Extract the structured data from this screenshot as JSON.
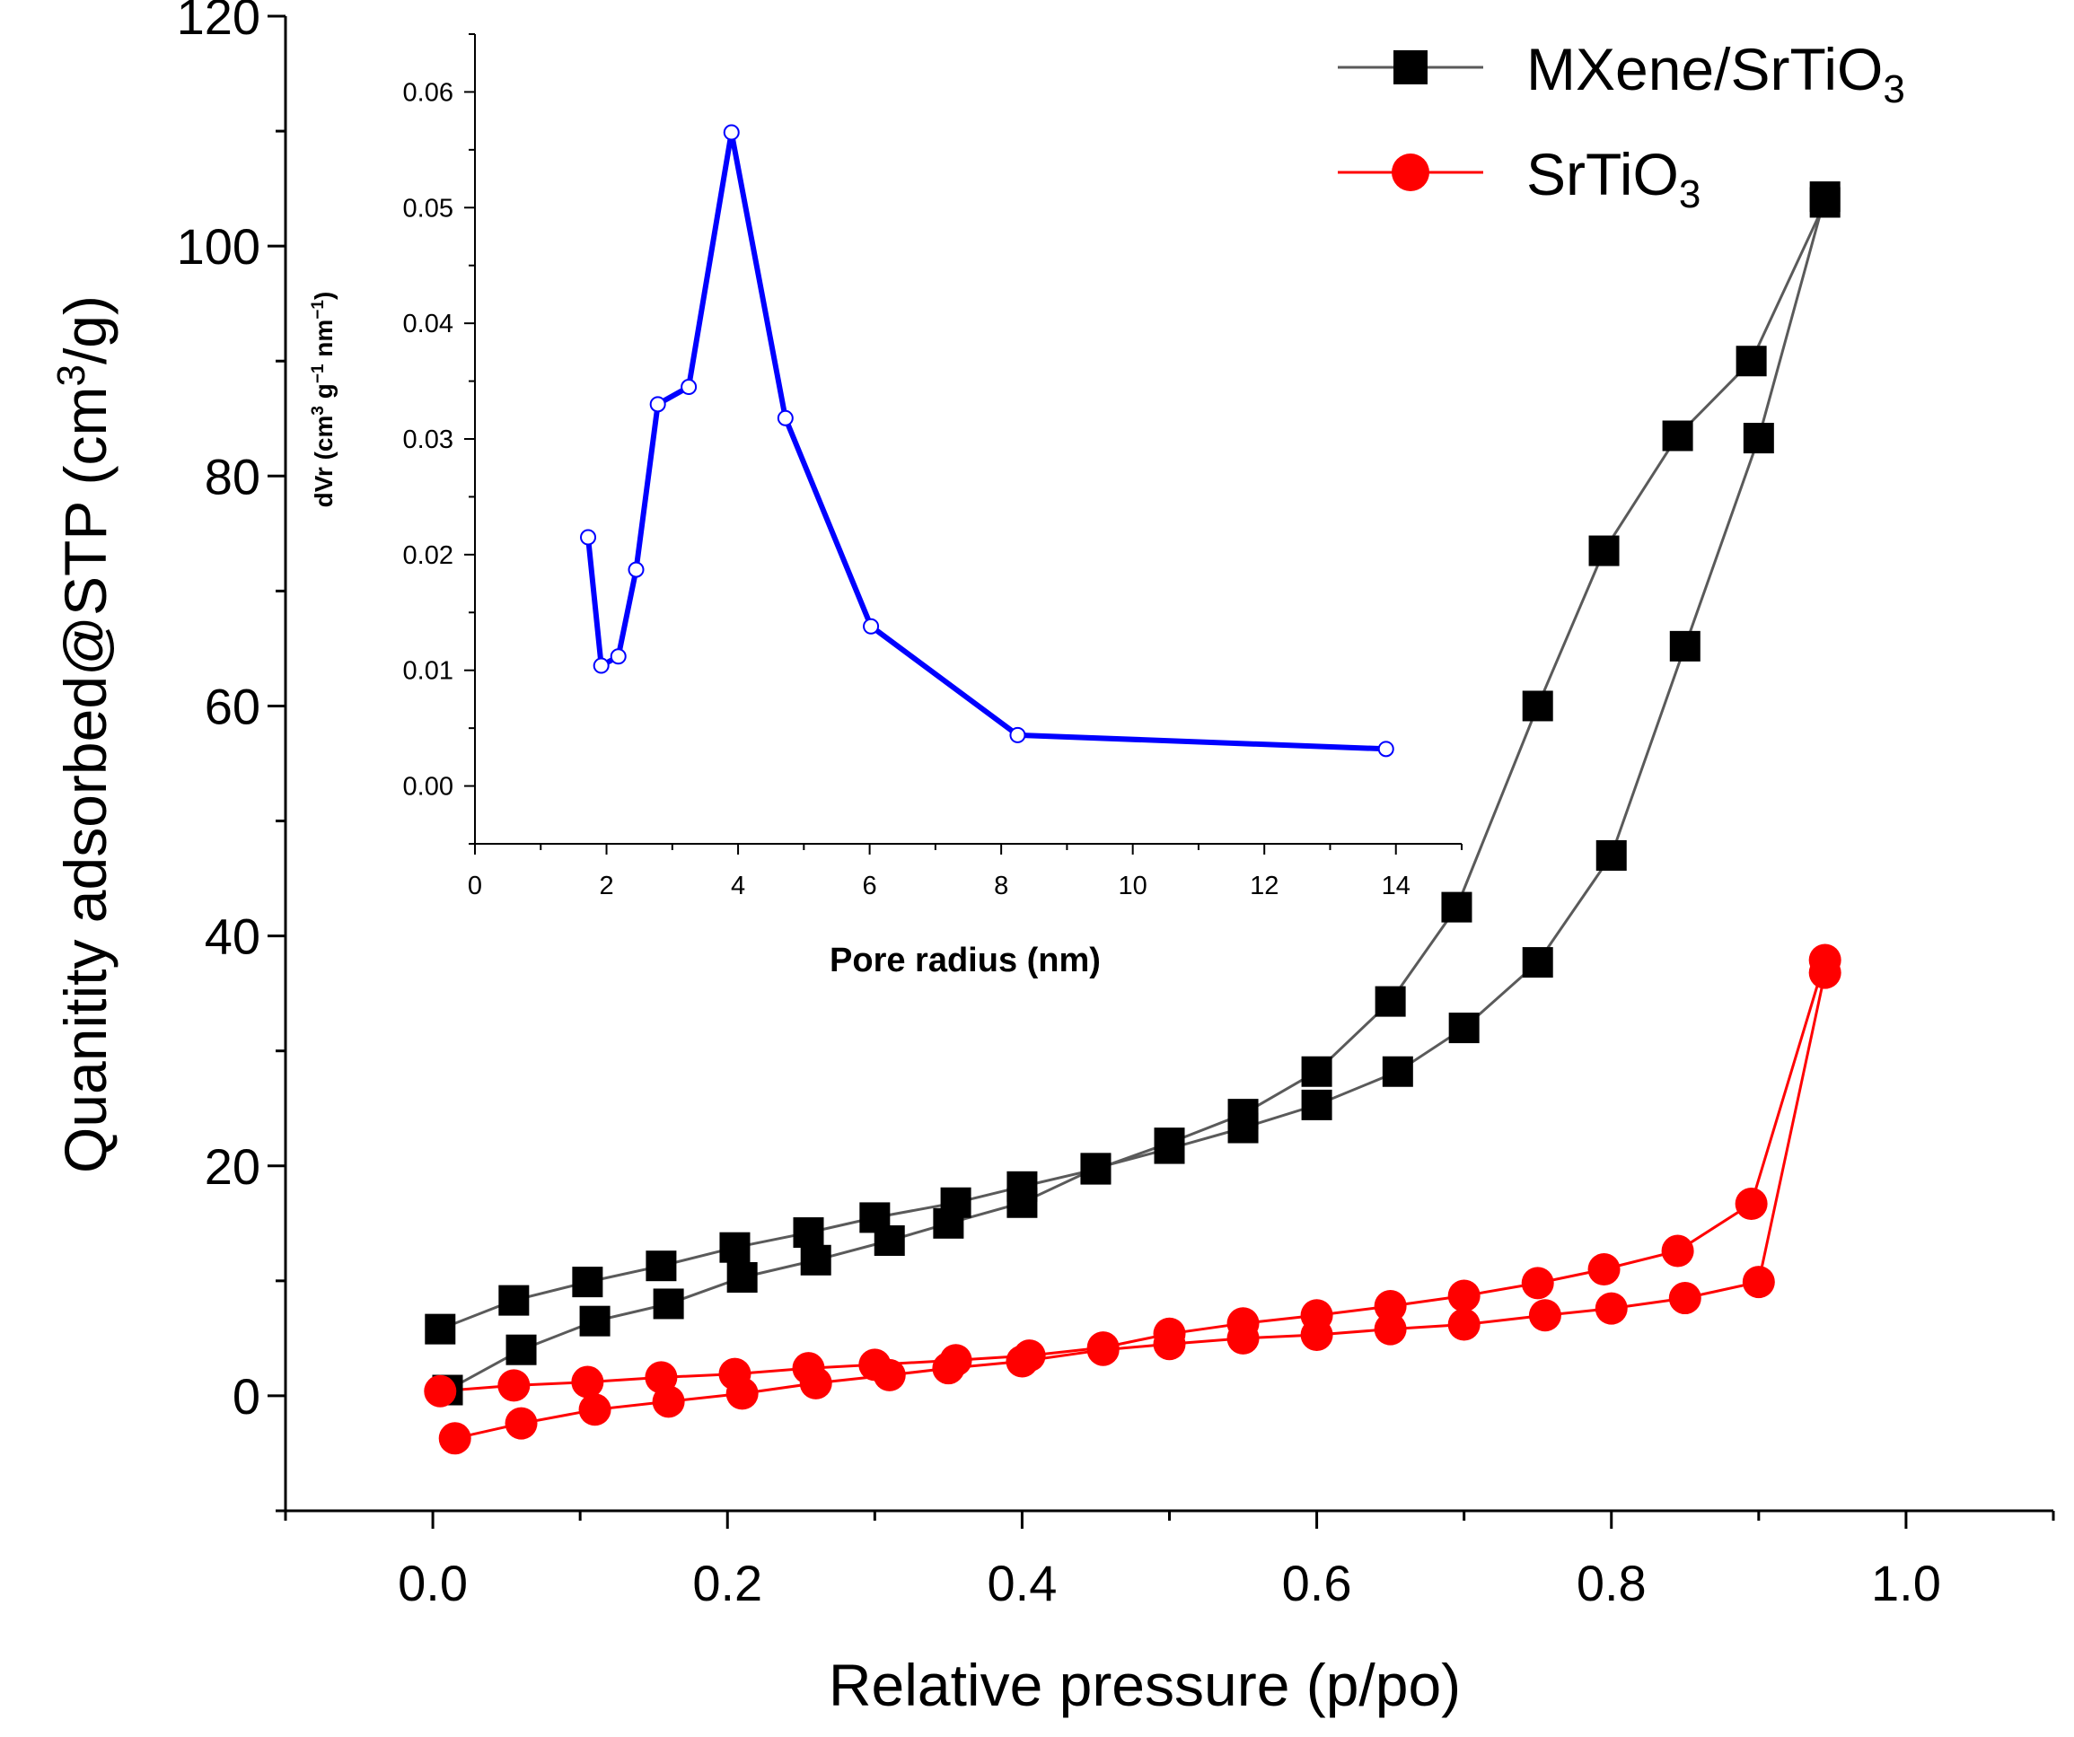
{
  "chart_data": [
    {
      "type": "scatter",
      "role": "main",
      "xlabel": "Relative pressure (p/po)",
      "ylabel": {
        "pre": "Quanitity adsorbed@STP (cm",
        "sup": "3",
        "post": "/g)"
      },
      "xlim": [
        -0.1,
        1.1
      ],
      "ylim": [
        -10,
        120
      ],
      "xticks": [
        0.0,
        0.2,
        0.4,
        0.6,
        0.8,
        1.0
      ],
      "xtick_labels": [
        "0.0",
        "0.2",
        "0.4",
        "0.6",
        "0.8",
        "1.0"
      ],
      "yticks": [
        0,
        20,
        40,
        60,
        80,
        100,
        120
      ],
      "ytick_labels": [
        "0",
        "20",
        "40",
        "60",
        "80",
        "100",
        "120"
      ],
      "series": [
        {
          "name": "MXene/SrTiO3",
          "legend": {
            "base": "MXene/SrTiO",
            "sub": "3"
          },
          "color": "#000000",
          "line_color": "#5a5a5a",
          "marker": "square",
          "branches": [
            {
              "label": "adsorption",
              "x": [
                0.01,
                0.06,
                0.11,
                0.16,
                0.21,
                0.26,
                0.31,
                0.35,
                0.4,
                0.45,
                0.5,
                0.55,
                0.6,
                0.655,
                0.7,
                0.75,
                0.8,
                0.85,
                0.9,
                0.945
              ],
              "y": [
                0.5,
                4,
                6.5,
                8,
                10.3,
                11.8,
                13.5,
                15,
                16.8,
                19.8,
                21.5,
                23.3,
                25.3,
                28.2,
                32,
                37.7,
                47,
                65.2,
                83.3,
                104.3
              ]
            },
            {
              "label": "desorption",
              "x": [
                0.945,
                0.895,
                0.845,
                0.795,
                0.75,
                0.695,
                0.65,
                0.6,
                0.55,
                0.5,
                0.45,
                0.4,
                0.355,
                0.3,
                0.255,
                0.205,
                0.155,
                0.105,
                0.055,
                0.005
              ],
              "y": [
                103.8,
                90,
                83.5,
                73.5,
                60,
                42.5,
                34.3,
                28.2,
                24.5,
                22,
                19.7,
                18.2,
                16.8,
                15.5,
                14.2,
                12.9,
                11.3,
                9.9,
                8.3,
                5.8
              ]
            }
          ]
        },
        {
          "name": "SrTiO3",
          "legend": {
            "base": "SrTiO",
            "sub": "3"
          },
          "color": "#ff0000",
          "line_color": "#ff0000",
          "marker": "circle",
          "branches": [
            {
              "label": "adsorption",
              "x": [
                0.015,
                0.06,
                0.11,
                0.16,
                0.21,
                0.26,
                0.31,
                0.35,
                0.4,
                0.455,
                0.5,
                0.55,
                0.6,
                0.65,
                0.7,
                0.755,
                0.8,
                0.85,
                0.9,
                0.945
              ],
              "y": [
                -3.7,
                -2.4,
                -1.2,
                -0.5,
                0.2,
                1.1,
                1.8,
                2.4,
                3,
                4,
                4.5,
                5,
                5.3,
                5.8,
                6.2,
                7,
                7.6,
                8.5,
                9.9,
                36.8
              ]
            },
            {
              "label": "desorption",
              "x": [
                0.945,
                0.895,
                0.845,
                0.795,
                0.75,
                0.7,
                0.65,
                0.6,
                0.55,
                0.5,
                0.455,
                0.405,
                0.355,
                0.3,
                0.255,
                0.205,
                0.155,
                0.105,
                0.055,
                0.005
              ],
              "y": [
                37.9,
                16.7,
                12.6,
                11,
                9.8,
                8.7,
                7.8,
                7,
                6.3,
                5.4,
                4.2,
                3.5,
                3.1,
                2.7,
                2.4,
                1.9,
                1.6,
                1.2,
                0.9,
                0.4
              ]
            }
          ]
        }
      ]
    },
    {
      "type": "line",
      "role": "inset",
      "xlabel": "Pore radius (nm)",
      "ylabel": {
        "pre": "dVr (cm",
        "sup1": "3",
        "mid": " g",
        "sup2": "−1",
        "mid2": " nm",
        "sup3": "−1",
        "post": ")"
      },
      "xlim": [
        0,
        15
      ],
      "ylim": [
        -0.005,
        0.065
      ],
      "xticks": [
        0,
        2,
        4,
        6,
        8,
        10,
        12,
        14
      ],
      "xtick_labels": [
        "0",
        "2",
        "4",
        "6",
        "8",
        "10",
        "12",
        "14"
      ],
      "yticks": [
        0,
        0.01,
        0.02,
        0.03,
        0.04,
        0.05,
        0.06
      ],
      "ytick_labels": [
        "0.00",
        "0.01",
        "0.02",
        "0.03",
        "0.04",
        "0.05",
        "0.06"
      ],
      "series": [
        {
          "name": "pore size distribution",
          "color": "#0000ff",
          "marker": "open-circle",
          "x": [
            1.72,
            1.92,
            2.18,
            2.45,
            2.78,
            3.25,
            3.9,
            4.72,
            6.02,
            8.25,
            13.85
          ],
          "y": [
            0.0215,
            0.0104,
            0.0112,
            0.0187,
            0.033,
            0.0345,
            0.0565,
            0.0318,
            0.0138,
            0.0044,
            0.0032
          ]
        }
      ]
    }
  ]
}
